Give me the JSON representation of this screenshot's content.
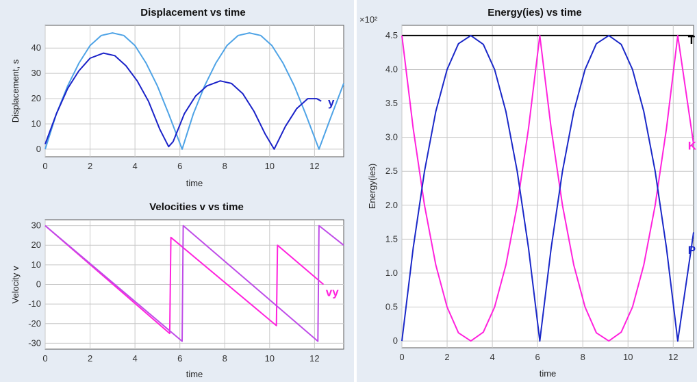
{
  "chart_data": [
    {
      "id": "displacement",
      "type": "line",
      "title": "Displacement vs time",
      "xlabel": "time",
      "ylabel": "Displacement, s",
      "xlim": [
        0,
        13.3
      ],
      "ylim": [
        -3,
        49
      ],
      "xticks": [
        0,
        2,
        4,
        6,
        8,
        10,
        12
      ],
      "yticks": [
        0,
        10,
        20,
        30,
        40
      ],
      "grid": true,
      "series": [
        {
          "color": "#4ea3e6",
          "x": [
            0,
            0.5,
            1,
            1.5,
            2,
            2.5,
            3,
            3.5,
            4,
            4.5,
            5,
            5.5,
            6.1,
            6.6,
            7.1,
            7.6,
            8.1,
            8.6,
            9.1,
            9.6,
            10.1,
            10.6,
            11.1,
            11.6,
            12.2,
            12.7,
            13.3
          ],
          "y": [
            0,
            14,
            25,
            34,
            41,
            45,
            46,
            45,
            41,
            34,
            25,
            14,
            0,
            14,
            25,
            34,
            41,
            45,
            46,
            45,
            41,
            34,
            25,
            14,
            0,
            12,
            26
          ]
        },
        {
          "color": "#1a22c8",
          "x": [
            0,
            0.5,
            1,
            1.5,
            2,
            2.6,
            3.1,
            3.6,
            4.1,
            4.6,
            5.1,
            5.5,
            5.7,
            6.2,
            6.7,
            7.2,
            7.8,
            8.3,
            8.8,
            9.3,
            9.8,
            10.2,
            10.7,
            11.2,
            11.7,
            12.1,
            12.3
          ],
          "y": [
            2,
            14,
            24,
            31,
            36,
            38,
            37,
            33,
            27,
            19,
            8,
            1,
            3,
            14,
            21,
            25,
            27,
            26,
            22,
            15,
            6,
            0,
            9,
            16,
            20,
            20,
            19
          ]
        }
      ],
      "annotations": [
        {
          "text": "y",
          "x": 12.6,
          "y": 17,
          "color": "#1a22c8"
        }
      ]
    },
    {
      "id": "velocity",
      "type": "line",
      "title": "Velocities v vs time",
      "xlabel": "time",
      "ylabel": "Velocity v",
      "xlim": [
        0,
        13.3
      ],
      "ylim": [
        -33,
        33
      ],
      "xticks": [
        0,
        2,
        4,
        6,
        8,
        10,
        12
      ],
      "yticks": [
        -30,
        -20,
        -10,
        0,
        10,
        20,
        30
      ],
      "grid": true,
      "series": [
        {
          "color": "#ff22dd",
          "x": [
            0,
            5.55,
            5.6,
            10.3,
            10.35,
            12.4
          ],
          "y": [
            30,
            -25,
            24,
            -21,
            20,
            0
          ]
        },
        {
          "color": "#bf4ce8",
          "x": [
            0,
            6.1,
            6.15,
            12.15,
            12.2,
            13.3
          ],
          "y": [
            30,
            -29,
            30,
            -29,
            30,
            20
          ]
        }
      ],
      "annotations": [
        {
          "text": "vy",
          "x": 12.5,
          "y": -6,
          "color": "#ff22dd"
        }
      ]
    },
    {
      "id": "energy",
      "type": "line",
      "title": "Energy(ies) vs time",
      "xlabel": "time",
      "ylabel": "Energy(ies)",
      "multiplier": "×10²",
      "xlim": [
        0,
        12.9
      ],
      "ylim": [
        -0.1,
        4.65
      ],
      "xticks": [
        0,
        2,
        4,
        6,
        8,
        10,
        12
      ],
      "yticks": [
        0,
        0.5,
        1.0,
        1.5,
        2.0,
        2.5,
        3.0,
        3.5,
        4.0,
        4.5
      ],
      "ytick_labels": [
        "0",
        "0.5",
        "1.0",
        "1.5",
        "2.0",
        "2.5",
        "3.0",
        "3.5",
        "4.0",
        "4.5"
      ],
      "grid": true,
      "series": [
        {
          "color": "#000000",
          "x": [
            0,
            12.9
          ],
          "y": [
            4.5,
            4.5
          ]
        },
        {
          "color": "#ff22dd",
          "x": [
            0,
            0.5,
            1,
            1.5,
            2,
            2.5,
            3.05,
            3.6,
            4.1,
            4.6,
            5.1,
            5.6,
            6.1,
            6.6,
            7.1,
            7.6,
            8.1,
            8.6,
            9.15,
            9.7,
            10.2,
            10.7,
            11.2,
            11.7,
            12.2,
            12.9
          ],
          "y": [
            4.5,
            3.13,
            2.0,
            1.12,
            0.5,
            0.12,
            0,
            0.13,
            0.5,
            1.12,
            2.0,
            3.13,
            4.5,
            3.13,
            2.0,
            1.12,
            0.5,
            0.12,
            0,
            0.13,
            0.5,
            1.12,
            2.0,
            3.13,
            4.5,
            2.9
          ]
        },
        {
          "color": "#1a28c8",
          "x": [
            0,
            0.5,
            1,
            1.5,
            2,
            2.5,
            3.05,
            3.6,
            4.1,
            4.6,
            5.1,
            5.6,
            6.1,
            6.6,
            7.1,
            7.6,
            8.1,
            8.6,
            9.15,
            9.7,
            10.2,
            10.7,
            11.2,
            11.7,
            12.2,
            12.9
          ],
          "y": [
            0,
            1.37,
            2.5,
            3.38,
            4.0,
            4.38,
            4.5,
            4.37,
            4.0,
            3.38,
            2.5,
            1.37,
            0,
            1.37,
            2.5,
            3.38,
            4.0,
            4.38,
            4.5,
            4.37,
            4.0,
            3.38,
            2.5,
            1.37,
            0,
            1.6
          ]
        }
      ],
      "annotations": [
        {
          "text": "T",
          "x": 12.65,
          "y": 4.38,
          "color": "#000000"
        },
        {
          "text": "K",
          "x": 12.65,
          "y": 2.82,
          "color": "#ff22dd"
        },
        {
          "text": "P",
          "x": 12.65,
          "y": 1.28,
          "color": "#1a28c8"
        }
      ]
    }
  ]
}
